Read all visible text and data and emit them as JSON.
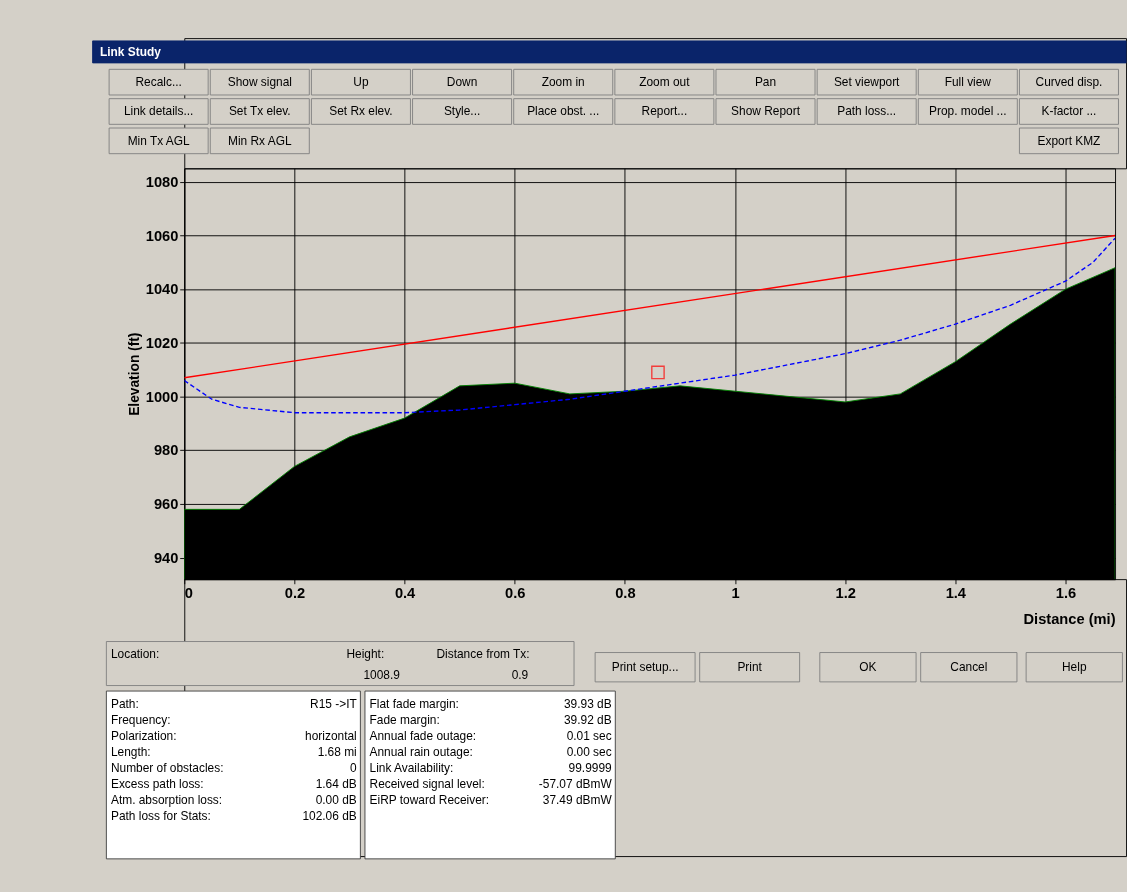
{
  "chart_data": {
    "type": "area",
    "title": "Link Study",
    "xlabel": "Distance (mi)",
    "ylabel": "Elevation (ft)",
    "xlim": [
      0,
      1.69
    ],
    "ylim": [
      932,
      1085
    ],
    "xticks": [
      0,
      0.2,
      0.4,
      0.6,
      0.8,
      1,
      1.2,
      1.4,
      1.6
    ],
    "yticks": [
      940,
      960,
      980,
      1000,
      1020,
      1040,
      1060,
      1080
    ],
    "grid": true,
    "series": [
      {
        "color": "#000000",
        "x": [
          0,
          0.1,
          0.2,
          0.3,
          0.4,
          0.5,
          0.6,
          0.7,
          0.8,
          0.9,
          1.0,
          1.1,
          1.2,
          1.3,
          1.4,
          1.5,
          1.6,
          1.69
        ],
        "values": [
          958,
          958,
          974,
          985,
          992,
          1004,
          1005,
          1001,
          1002,
          1004,
          1002,
          1000,
          998,
          1001,
          1013,
          1027,
          1040,
          1048
        ]
      },
      {
        "type": "line",
        "color": "#ff0000",
        "line_style": "solid",
        "x": [
          0,
          1.69
        ],
        "values": [
          1007,
          1060
        ]
      },
      {
        "type": "line",
        "color": "#0000ff",
        "line_style": "dashed",
        "x": [
          0,
          0.05,
          0.1,
          0.2,
          0.3,
          0.4,
          0.5,
          0.6,
          0.7,
          0.8,
          0.9,
          1.0,
          1.1,
          1.2,
          1.3,
          1.4,
          1.5,
          1.6,
          1.65,
          1.69
        ],
        "values": [
          1006,
          999,
          996,
          994,
          994,
          994,
          995,
          997,
          999,
          1002,
          1005,
          1008,
          1012,
          1016,
          1021,
          1027,
          1034,
          1043,
          1050,
          1059
        ]
      },
      {
        "type": "scatter",
        "color": "#ff0000",
        "marker": "square",
        "x": [
          0.86
        ],
        "values": [
          1009
        ]
      }
    ],
    "annotations": [
      "Recalc...",
      "Show signal",
      "Up",
      "Down",
      "Zoom in",
      "Zoom out",
      "Pan",
      "Set viewport",
      "Full view",
      "Curved disp.",
      "Link details...",
      "Set Tx elev.",
      "Set Rx elev.",
      "Style...",
      "Place obst. ...",
      "Report...",
      "Show Report",
      "Path loss...",
      "Prop. model ...",
      "K-factor ...",
      "Min Tx AGL",
      "Min Rx AGL",
      "Export KMZ",
      "Location:",
      "Height:",
      "1008.9",
      "Distance from Tx:",
      "0.9",
      "Print setup...",
      "Print",
      "OK",
      "Cancel",
      "Help",
      "Path:",
      "Frequency:",
      "Polarization:",
      "Length:",
      "Number of obstacles:",
      "Excess path loss:",
      "Atm. absorption loss:",
      "Path loss for Stats:",
      "R15 ->IT",
      "horizontal",
      "1.68 mi",
      "0",
      "1.64 dB",
      "0.00 dB",
      "102.06 dB",
      "Flat fade margin:",
      "Fade margin:",
      "Annual fade outage:",
      "Annual rain outage:",
      "Link Availability:",
      "Received signal level:",
      "EiRP toward Receiver:",
      "39.93 dB",
      "39.92 dB",
      "0.01 sec",
      "0.00 sec",
      "99.9999",
      "-57.07 dBmW",
      "37.49 dBmW"
    ]
  }
}
